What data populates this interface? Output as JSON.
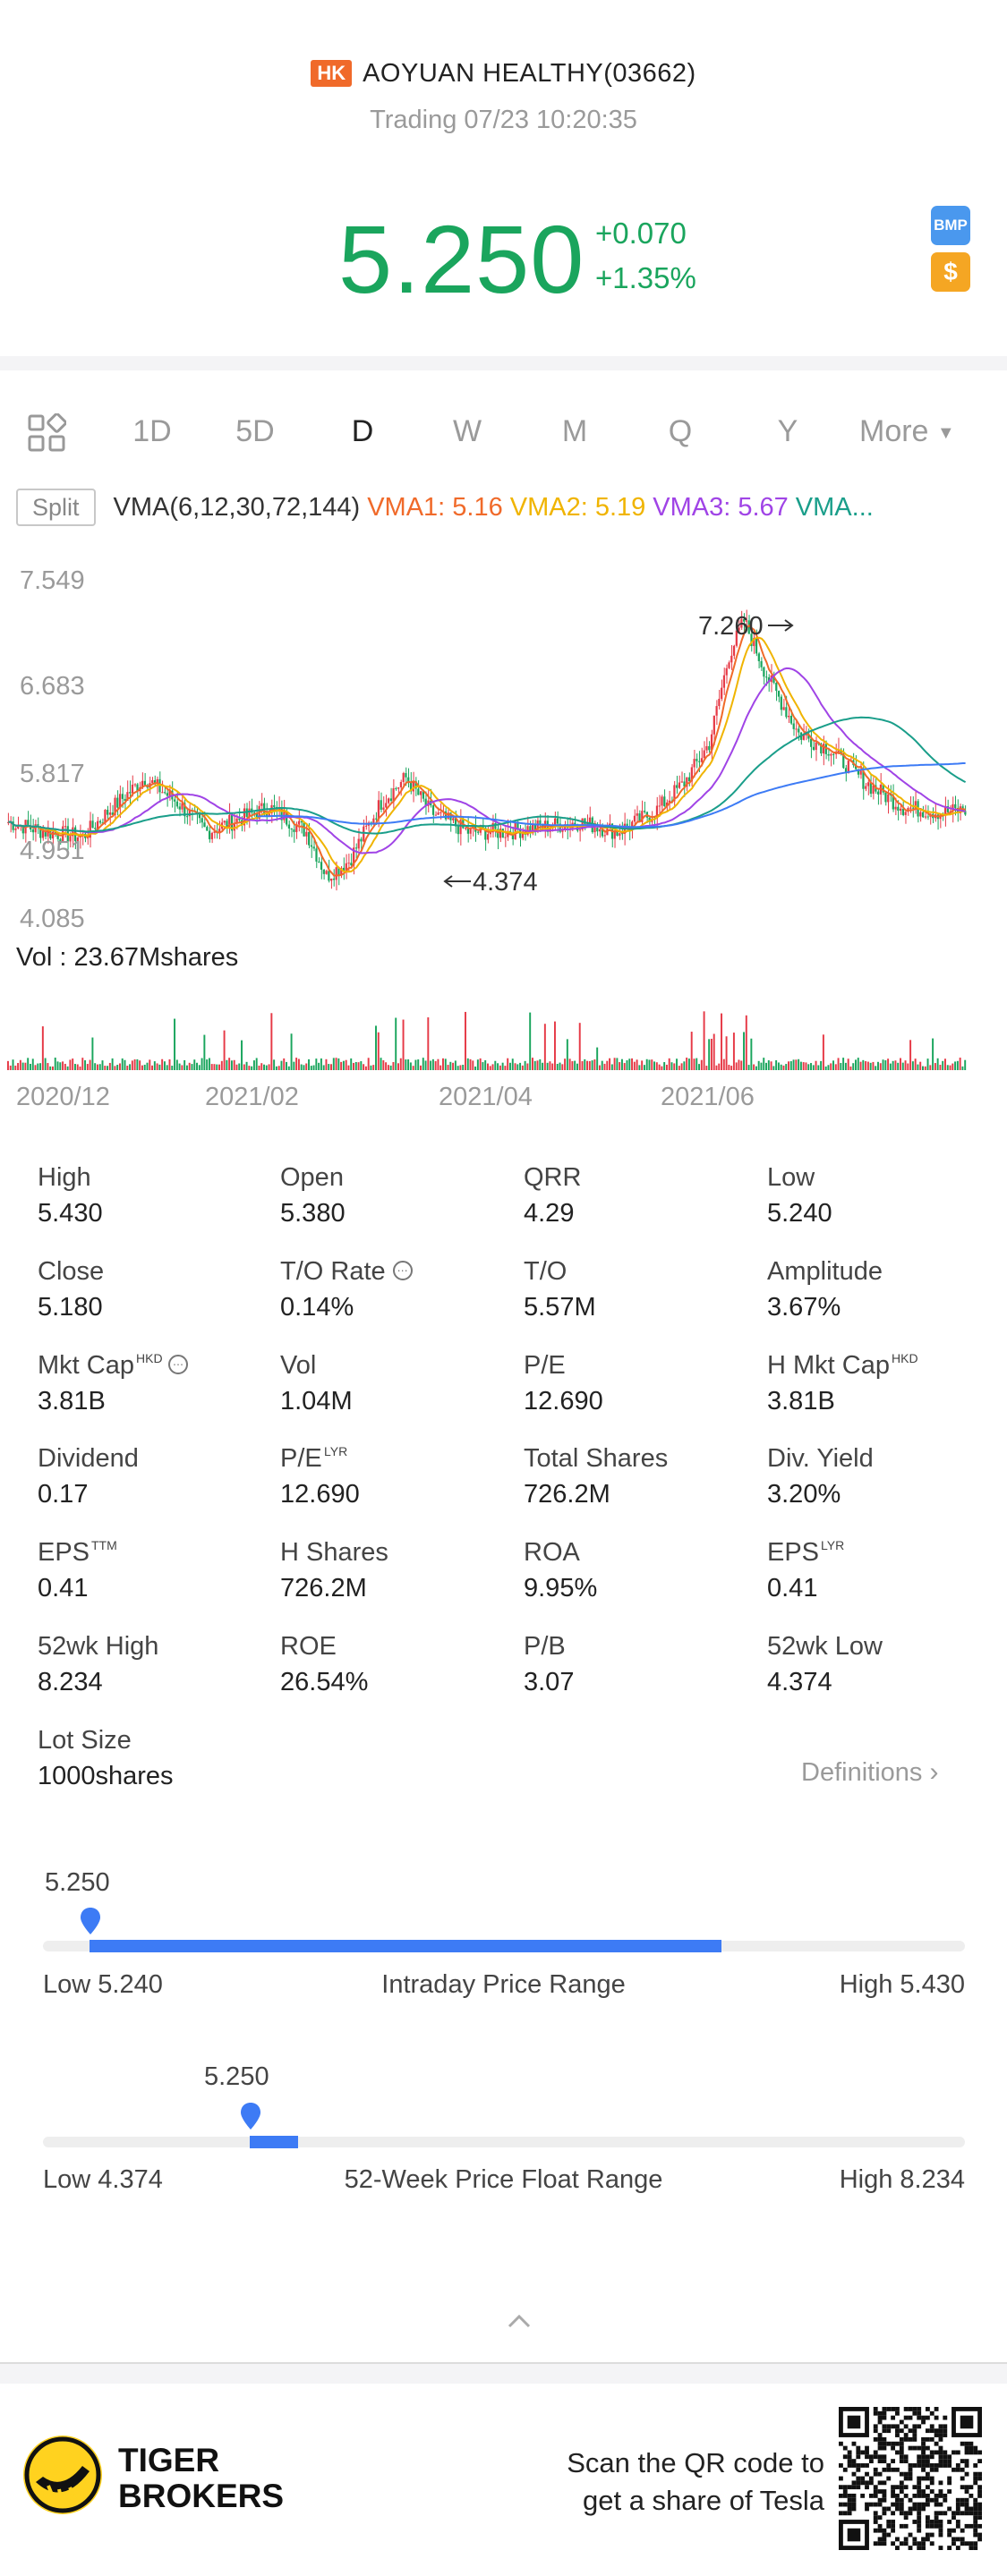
{
  "header": {
    "market_badge": "HK",
    "stock_name": "AOYUAN HEALTHY(03662)",
    "status": "Trading 07/23 10:20:35",
    "price": "5.250",
    "change": "+0.070",
    "change_pct": "+1.35%",
    "icons": {
      "bmp": "BMP",
      "dollar": "$"
    }
  },
  "colors": {
    "up_green": "#1aa55d",
    "accent_blue": "#3d7bf5",
    "market_badge": "#f06a2a",
    "vma1": "#f06a2a",
    "vma2": "#f0b400",
    "vma3": "#a044e6",
    "vma4": "#1a9e8a",
    "vma5": "#3d7bf5",
    "candle_up": "#e63946",
    "candle_down": "#1aa55d"
  },
  "tabs": {
    "items": [
      "1D",
      "5D",
      "D",
      "W",
      "M",
      "Q",
      "Y"
    ],
    "active": "D",
    "more": "More"
  },
  "indicators": {
    "split": "Split",
    "vma_label": "VMA(6,12,30,72,144)",
    "vma1": "VMA1: 5.16",
    "vma2": "VMA2: 5.19",
    "vma3": "VMA3: 5.67",
    "vma4": "VMA..."
  },
  "chart_data": {
    "type": "candlestick",
    "y_ticks": [
      "7.549",
      "6.683",
      "5.817",
      "4.951",
      "4.085"
    ],
    "ylim": [
      4.085,
      7.549
    ],
    "x_ticks": [
      "2020/12",
      "2021/02",
      "2021/04",
      "2021/06"
    ],
    "annotations": {
      "max_label": "7.260",
      "min_label": "4.374"
    },
    "volume_label": "Vol  : 23.67Mshares"
  },
  "stats": [
    {
      "label": "High",
      "value": "5.430"
    },
    {
      "label": "Open",
      "value": "5.380"
    },
    {
      "label": "QRR",
      "value": "4.29"
    },
    {
      "label": "Low",
      "value": "5.240"
    },
    {
      "label": "Close",
      "value": "5.180"
    },
    {
      "label": "T/O Rate",
      "value": "0.14%"
    },
    {
      "label": "T/O",
      "value": "5.57M"
    },
    {
      "label": "Amplitude",
      "value": "3.67%"
    },
    {
      "label": "Mkt Cap",
      "value": "3.81B",
      "sup": "HKD"
    },
    {
      "label": "Vol",
      "value": "1.04M"
    },
    {
      "label": "P/E",
      "value": "12.690"
    },
    {
      "label": "H Mkt Cap",
      "value": "3.81B",
      "sup": "HKD"
    },
    {
      "label": "Dividend",
      "value": "0.17"
    },
    {
      "label": "P/E",
      "value": "12.690",
      "sup": "LYR"
    },
    {
      "label": "Total Shares",
      "value": "726.2M"
    },
    {
      "label": "Div. Yield",
      "value": "3.20%"
    },
    {
      "label": "EPS",
      "value": "0.41",
      "sup": "TTM"
    },
    {
      "label": "H Shares",
      "value": "726.2M"
    },
    {
      "label": "ROA",
      "value": "9.95%"
    },
    {
      "label": "EPS",
      "value": "0.41",
      "sup": "LYR"
    },
    {
      "label": "52wk High",
      "value": "8.234"
    },
    {
      "label": "ROE",
      "value": "26.54%"
    },
    {
      "label": "P/B",
      "value": "3.07"
    },
    {
      "label": "52wk Low",
      "value": "4.374"
    },
    {
      "label": "Lot Size",
      "value": "1000shares"
    }
  ],
  "definitions": "Definitions",
  "intraday_range": {
    "current": "5.250",
    "low_label": "Low 5.240",
    "title": "Intraday Price Range",
    "high_label": "High 5.430",
    "low": 5.24,
    "high": 5.43,
    "value": 5.25
  },
  "week52_range": {
    "current": "5.250",
    "low_label": "Low 4.374",
    "title": "52-Week Price Float Range",
    "high_label": "High 8.234",
    "low": 4.374,
    "high": 8.234,
    "value": 5.25
  },
  "footer": {
    "brand_line1": "TIGER",
    "brand_line2": "BROKERS",
    "qr_line1": "Scan the QR code to",
    "qr_line2": "get a share of Tesla"
  }
}
